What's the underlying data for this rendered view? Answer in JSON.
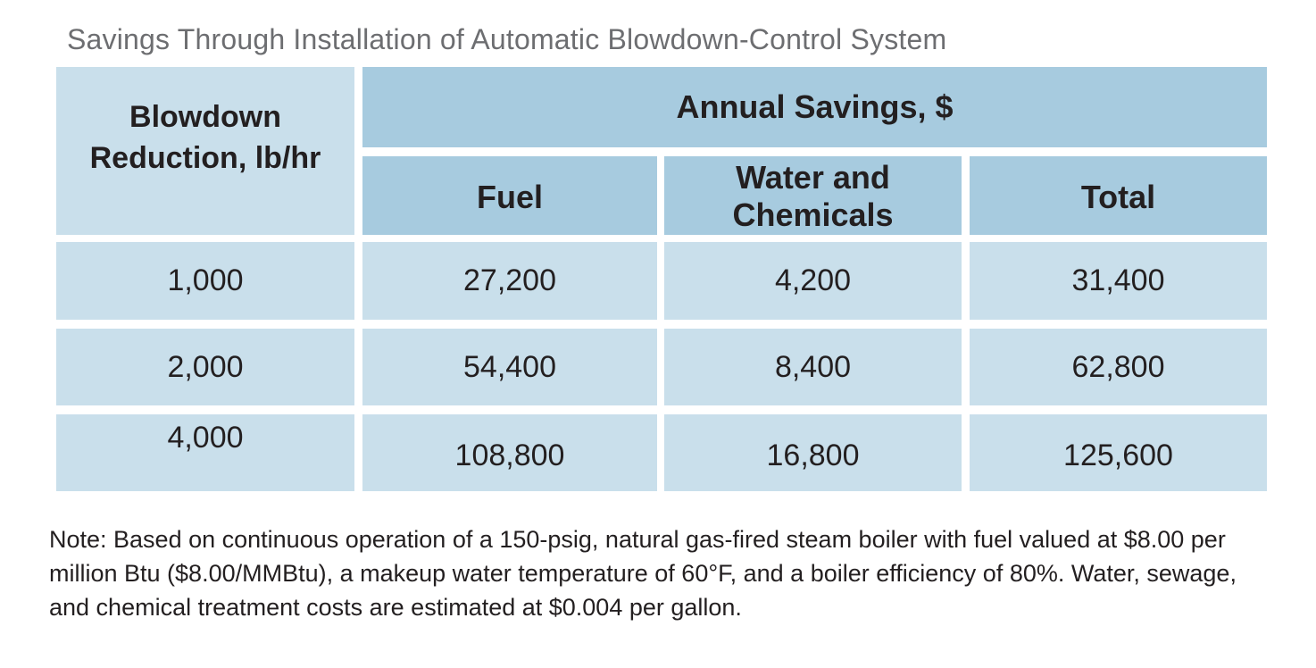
{
  "title": "Savings Through Installation of Automatic Blowdown-Control System",
  "table": {
    "header": {
      "blowdown_line1": "Blowdown",
      "blowdown_line2": "Reduction, lb/hr",
      "annual_savings": "Annual Savings, $",
      "fuel": "Fuel",
      "water_line1": "Water and",
      "water_line2": "Chemicals",
      "total": "Total"
    },
    "rows": [
      {
        "blowdown": "1,000",
        "fuel": "27,200",
        "water": "4,200",
        "total": "31,400"
      },
      {
        "blowdown": "2,000",
        "fuel": "54,400",
        "water": "8,400",
        "total": "62,800"
      },
      {
        "blowdown": "4,000",
        "fuel": "108,800",
        "water": "16,800",
        "total": "125,600"
      }
    ]
  },
  "note": "Note: Based on continuous operation of a 150-psig, natural gas-fired steam boiler with fuel valued at $8.00 per million Btu ($8.00/MMBtu), a makeup water temperature of 60°F, and a boiler efficiency of 80%. Water, sewage, and chemical treatment costs are estimated at $0.004 per gallon.",
  "colors": {
    "header_dark": "#a7cbdf",
    "cell_light": "#c9dfeb",
    "title_gray": "#6d6e71"
  }
}
